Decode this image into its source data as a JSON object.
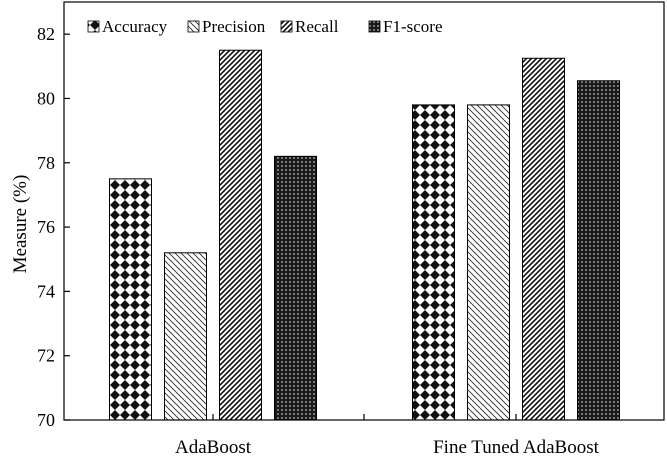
{
  "chart_data": {
    "type": "bar",
    "ylabel": "Measure (%)",
    "xlabel": "",
    "ylim": [
      70,
      83
    ],
    "yticks": [
      70,
      72,
      74,
      76,
      78,
      80,
      82
    ],
    "categories": [
      "AdaBoost",
      "Fine Tuned AdaBoost"
    ],
    "series": [
      {
        "name": "Accuracy",
        "values": [
          77.5,
          79.8
        ],
        "pattern": "checker"
      },
      {
        "name": "Precision",
        "values": [
          75.2,
          79.8
        ],
        "pattern": "backslash"
      },
      {
        "name": "Recall",
        "values": [
          81.5,
          81.25
        ],
        "pattern": "slash"
      },
      {
        "name": "F1-score",
        "values": [
          78.2,
          80.55
        ],
        "pattern": "dots"
      }
    ],
    "legend_position": "top-left",
    "grid": false
  }
}
